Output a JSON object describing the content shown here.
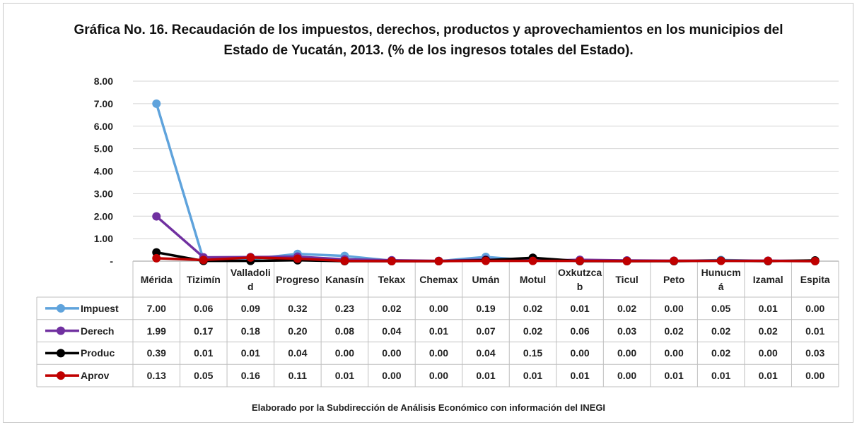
{
  "chart_data": {
    "type": "line",
    "title": "Gráfica No. 16. Recaudación de los impuestos, derechos, productos y aprovechamientos en los municipios del Estado de Yucatán, 2013. (% de los ingresos totales del Estado).",
    "source": "Elaborado por la Subdirección de Análisis Económico con información del INEGI",
    "categories": [
      "Mérida",
      "Tizimín",
      "Valladolid",
      "Progreso",
      "Kanasín",
      "Tekax",
      "Chemax",
      "Umán",
      "Motul",
      "Oxkutzcab",
      "Ticul",
      "Peto",
      "Hunucmá",
      "Izamal",
      "Espita"
    ],
    "series": [
      {
        "name": "Impuest",
        "color": "#5fa3dc",
        "values": [
          7,
          0.06,
          0.09,
          0.32,
          0.23,
          0.02,
          0,
          0.19,
          0.02,
          0.01,
          0.02,
          0,
          0.05,
          0.01,
          0
        ],
        "value_labels": [
          "7.00",
          "0.06",
          "0.09",
          "0.32",
          "0.23",
          "0.02",
          "0.00",
          "0.19",
          "0.02",
          "0.01",
          "0.02",
          "0.00",
          "0.05",
          "0.01",
          "0.00"
        ]
      },
      {
        "name": "Derech",
        "color": "#7030a0",
        "values": [
          1.99,
          0.17,
          0.18,
          0.2,
          0.08,
          0.04,
          0.01,
          0.07,
          0.02,
          0.06,
          0.03,
          0.02,
          0.02,
          0.02,
          0.01
        ],
        "value_labels": [
          "1.99",
          "0.17",
          "0.18",
          "0.20",
          "0.08",
          "0.04",
          "0.01",
          "0.07",
          "0.02",
          "0.06",
          "0.03",
          "0.02",
          "0.02",
          "0.02",
          "0.01"
        ]
      },
      {
        "name": "Produc",
        "color": "#000000",
        "values": [
          0.39,
          0.01,
          0.01,
          0.04,
          0,
          0,
          0,
          0.04,
          0.15,
          0,
          0,
          0,
          0.02,
          0,
          0.03
        ],
        "value_labels": [
          "0.39",
          "0.01",
          "0.01",
          "0.04",
          "0.00",
          "0.00",
          "0.00",
          "0.04",
          "0.15",
          "0.00",
          "0.00",
          "0.00",
          "0.02",
          "0.00",
          "0.03"
        ]
      },
      {
        "name": "Aprov",
        "color": "#c00000",
        "values": [
          0.13,
          0.05,
          0.16,
          0.11,
          0.01,
          0,
          0,
          0.01,
          0.01,
          0.01,
          0,
          0.01,
          0.01,
          0.01,
          0
        ],
        "value_labels": [
          "0.13",
          "0.05",
          "0.16",
          "0.11",
          "0.01",
          "0.00",
          "0.00",
          "0.01",
          "0.01",
          "0.01",
          "0.00",
          "0.01",
          "0.01",
          "0.01",
          "0.00"
        ]
      }
    ],
    "ylim": [
      0,
      8
    ],
    "yticks": [
      {
        "value": 0,
        "label": "-"
      },
      {
        "value": 1,
        "label": "1.00"
      },
      {
        "value": 2,
        "label": "2.00"
      },
      {
        "value": 3,
        "label": "3.00"
      },
      {
        "value": 4,
        "label": "4.00"
      },
      {
        "value": 5,
        "label": "5.00"
      },
      {
        "value": 6,
        "label": "6.00"
      },
      {
        "value": 7,
        "label": "7.00"
      },
      {
        "value": 8,
        "label": "8.00"
      }
    ],
    "grid": true
  }
}
